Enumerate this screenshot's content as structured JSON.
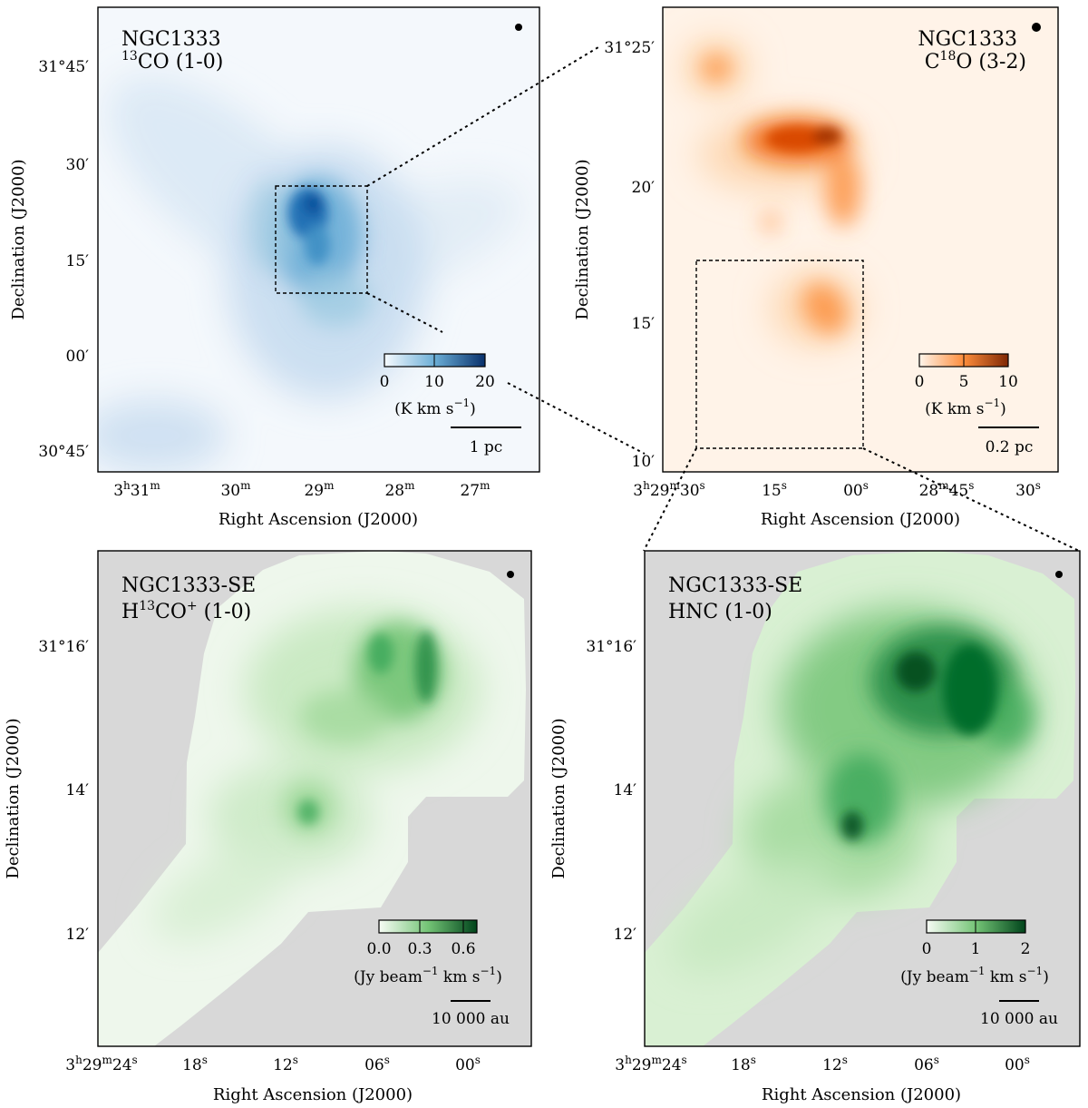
{
  "figure": {
    "xlabel": "Right Ascension (J2000)",
    "ylabel": "Declination (J2000)"
  },
  "chart_data": [
    {
      "type": "heatmap",
      "target": "NGC1333",
      "tracer_base": "13",
      "tracer_rest": "CO (1-0)",
      "cmap": "#08519c",
      "cbar_ticks": [
        "0",
        "10",
        "20"
      ],
      "cbar_unit_a": "(K km s",
      "cbar_unit_sup": "−1",
      "cbar_unit_b": ")",
      "scalebar_label": "1 pc",
      "xticks": [
        {
          "h": "3",
          "hs": "h",
          "m": "31",
          "ms": "m",
          "s": "",
          "ss": ""
        },
        {
          "h": "",
          "hs": "",
          "m": "30",
          "ms": "m",
          "s": "",
          "ss": ""
        },
        {
          "h": "",
          "hs": "",
          "m": "29",
          "ms": "m",
          "s": "",
          "ss": ""
        },
        {
          "h": "",
          "hs": "",
          "m": "28",
          "ms": "m",
          "s": "",
          "ss": ""
        },
        {
          "h": "",
          "hs": "",
          "m": "27",
          "ms": "m",
          "s": "",
          "ss": ""
        }
      ],
      "yticks": [
        "31°45′",
        "30′",
        "15′",
        "00′",
        "30°45′"
      ]
    },
    {
      "type": "heatmap",
      "target": "NGC1333",
      "tracer_base": "C",
      "tracer_sup": "18",
      "tracer_rest": "O (3-2)",
      "cmap": "#c8500a",
      "cbar_ticks": [
        "0",
        "5",
        "10"
      ],
      "cbar_unit_a": "(K km s",
      "cbar_unit_sup": "−1",
      "cbar_unit_b": ")",
      "scalebar_label": "0.2 pc",
      "xticks": [
        {
          "h": "3",
          "hs": "h",
          "m": "29",
          "ms": "m",
          "s": "30",
          "ss": "s"
        },
        {
          "h": "",
          "hs": "",
          "m": "",
          "ms": "",
          "s": "15",
          "ss": "s"
        },
        {
          "h": "",
          "hs": "",
          "m": "",
          "ms": "",
          "s": "00",
          "ss": "s"
        },
        {
          "h": "",
          "hs": "",
          "m": "28",
          "ms": "m",
          "s": "45",
          "ss": "s"
        },
        {
          "h": "",
          "hs": "",
          "m": "",
          "ms": "",
          "s": "30",
          "ss": "s"
        }
      ],
      "yticks": [
        "31°25′",
        "20′",
        "15′",
        "10′"
      ]
    },
    {
      "type": "heatmap",
      "target": "NGC1333-SE",
      "tracer_base": "H",
      "tracer_sup": "13",
      "tracer_rest": "CO",
      "tracer_sup2": "+",
      "tracer_rest2": " (1-0)",
      "cmap": "#1e8a3e",
      "cbar_ticks": [
        "0.0",
        "0.3",
        "0.6"
      ],
      "cbar_unit_a": "(Jy beam",
      "cbar_unit_sup": "−1",
      "cbar_unit_b": " km s",
      "cbar_unit_sup2": "−1",
      "cbar_unit_c": ")",
      "scalebar_label": "10 000 au",
      "xticks": [
        {
          "h": "3",
          "hs": "h",
          "m": "29",
          "ms": "m",
          "s": "24",
          "ss": "s"
        },
        {
          "h": "",
          "hs": "",
          "m": "",
          "ms": "",
          "s": "18",
          "ss": "s"
        },
        {
          "h": "",
          "hs": "",
          "m": "",
          "ms": "",
          "s": "12",
          "ss": "s"
        },
        {
          "h": "",
          "hs": "",
          "m": "",
          "ms": "",
          "s": "06",
          "ss": "s"
        },
        {
          "h": "",
          "hs": "",
          "m": "",
          "ms": "",
          "s": "00",
          "ss": "s"
        }
      ],
      "yticks": [
        "31°16′",
        "14′",
        "12′"
      ]
    },
    {
      "type": "heatmap",
      "target": "NGC1333-SE",
      "tracer_base": "HNC (1-0)",
      "cmap": "#0b6a2c",
      "cbar_ticks": [
        "0",
        "1",
        "2"
      ],
      "cbar_unit_a": "(Jy beam",
      "cbar_unit_sup": "−1",
      "cbar_unit_b": " km s",
      "cbar_unit_sup2": "−1",
      "cbar_unit_c": ")",
      "scalebar_label": "10 000 au",
      "xticks": [
        {
          "h": "3",
          "hs": "h",
          "m": "29",
          "ms": "m",
          "s": "24",
          "ss": "s"
        },
        {
          "h": "",
          "hs": "",
          "m": "",
          "ms": "",
          "s": "18",
          "ss": "s"
        },
        {
          "h": "",
          "hs": "",
          "m": "",
          "ms": "",
          "s": "12",
          "ss": "s"
        },
        {
          "h": "",
          "hs": "",
          "m": "",
          "ms": "",
          "s": "06",
          "ss": "s"
        },
        {
          "h": "",
          "hs": "",
          "m": "",
          "ms": "",
          "s": "00",
          "ss": "s"
        }
      ],
      "yticks": [
        "31°16′",
        "14′",
        "12′"
      ]
    }
  ]
}
